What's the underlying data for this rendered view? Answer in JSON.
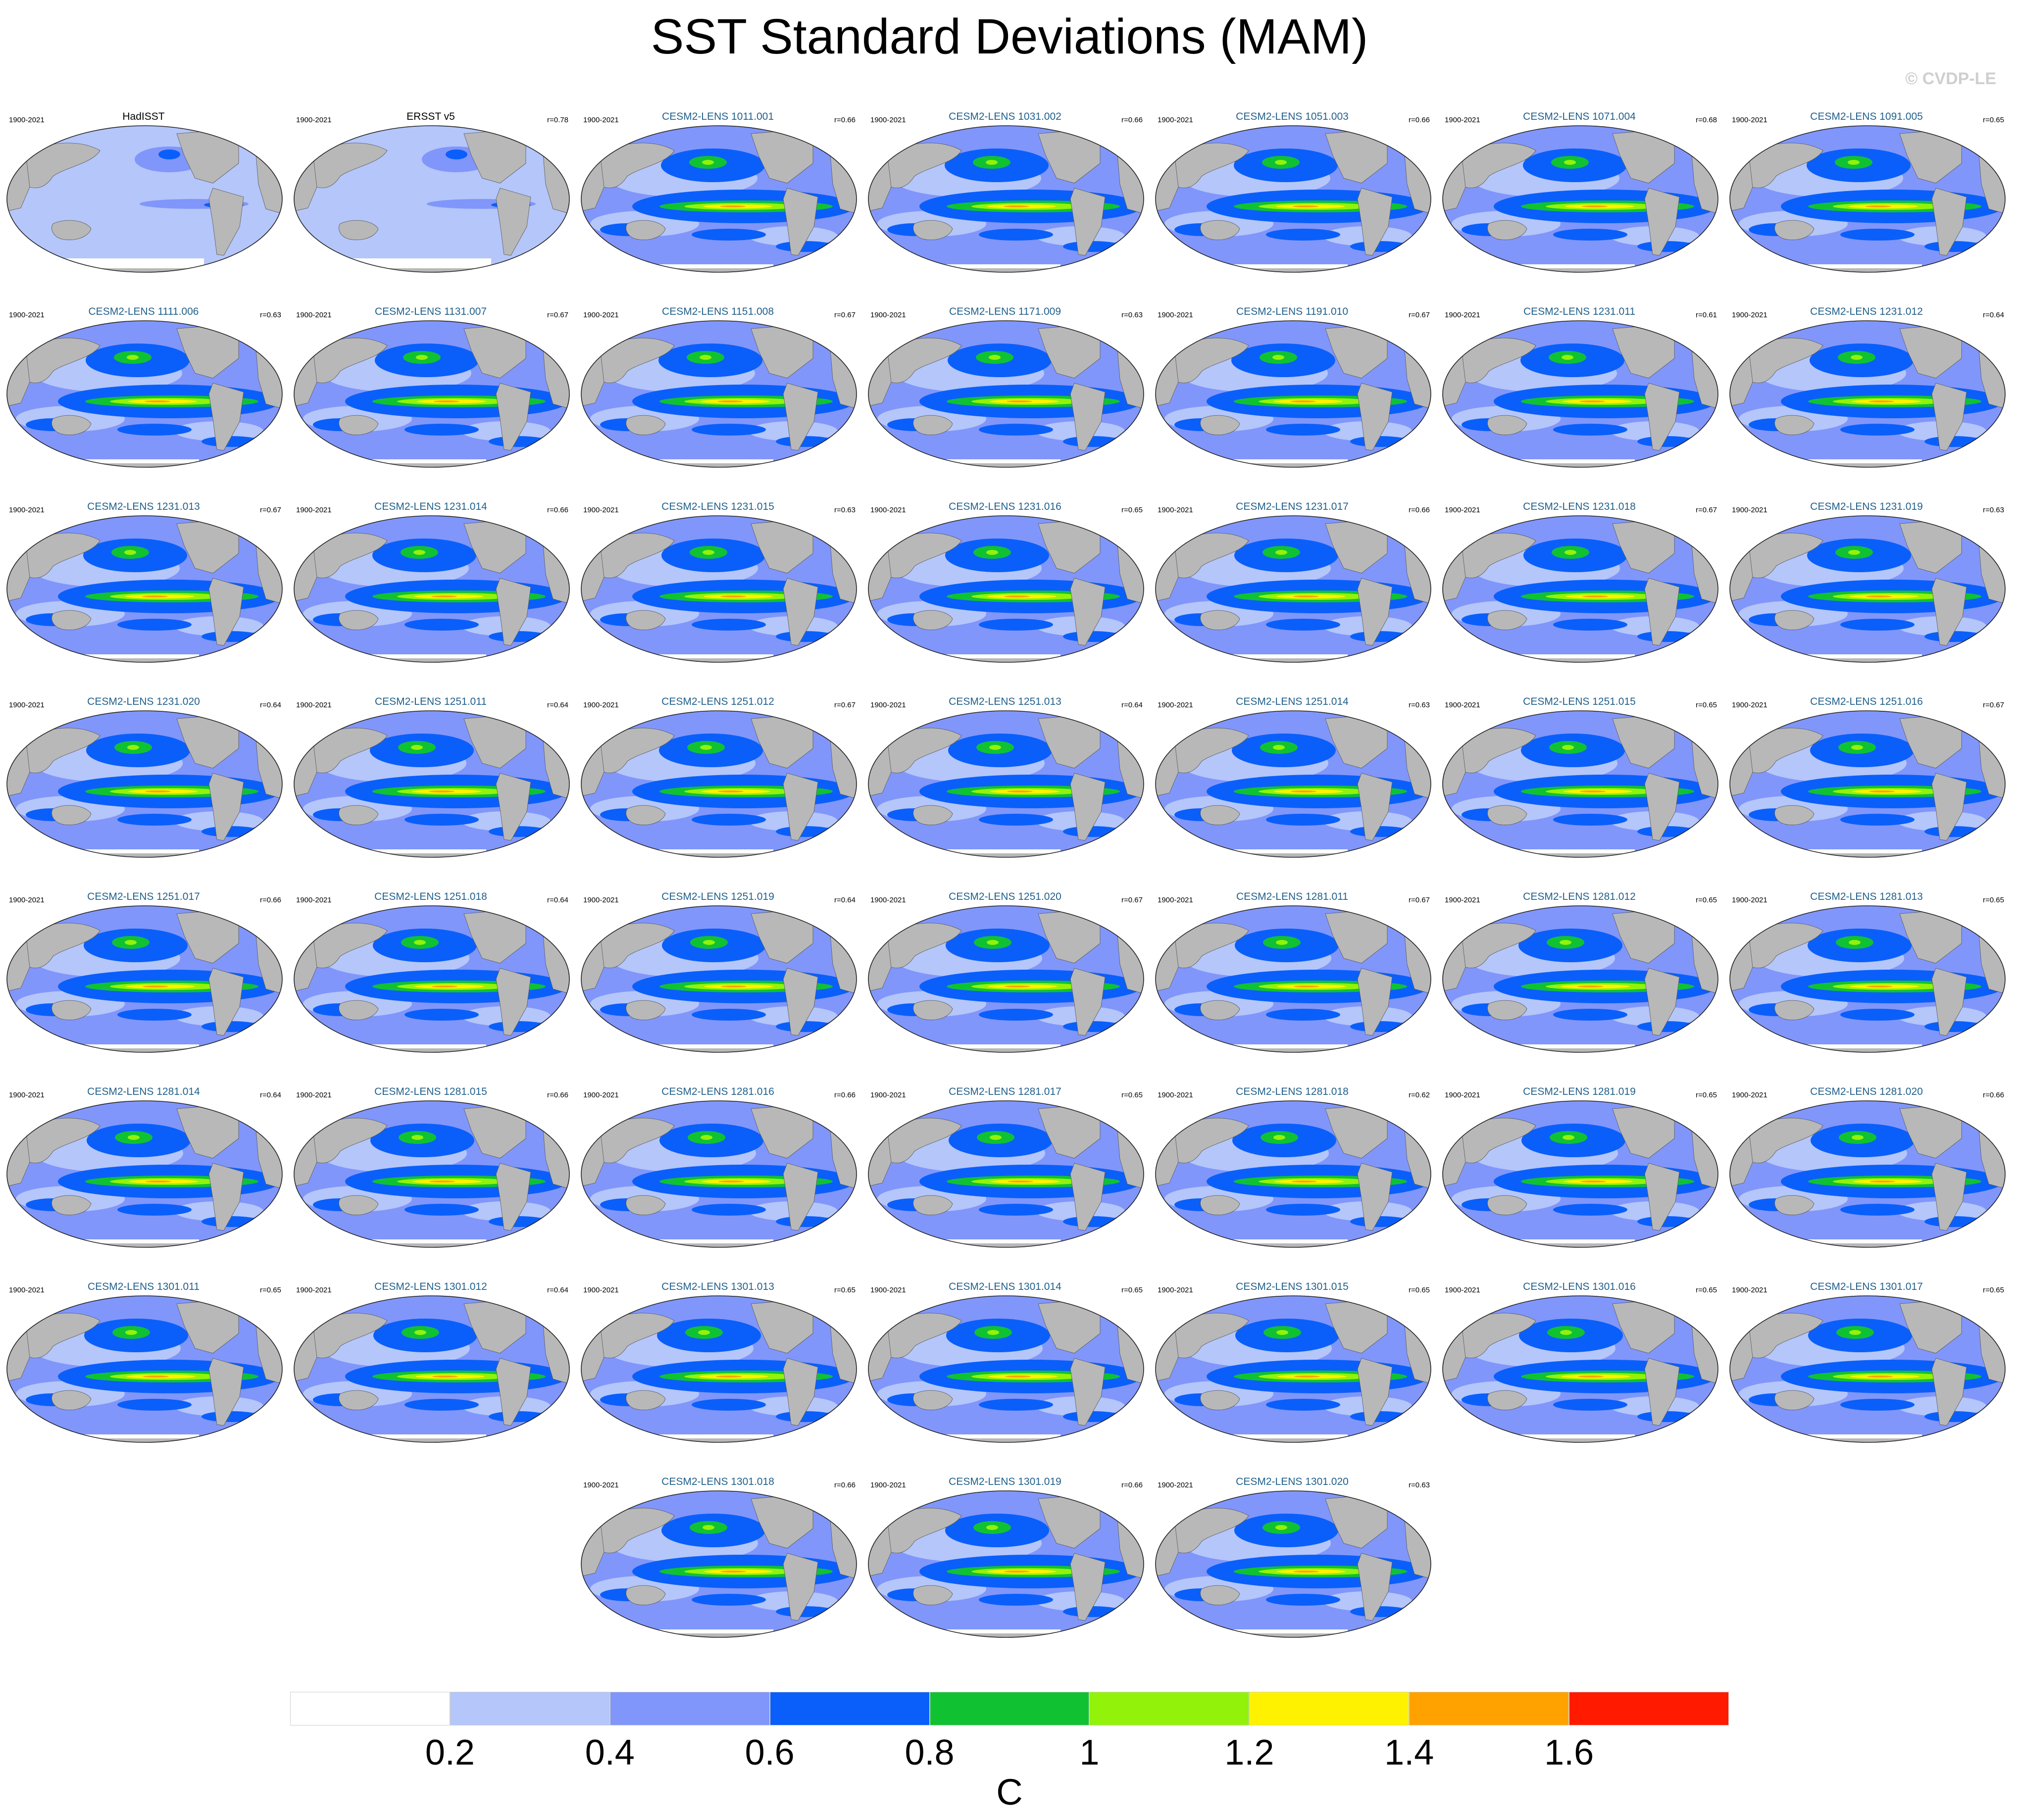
{
  "title": "SST Standard Deviations (MAM)",
  "copyright": "© CVDP-LE",
  "colors": {
    "land": "#b8b8b8",
    "ocean_low": "#b4c6fa",
    "ocean_mid": "#8196fa",
    "ocean_high": "#0a5ffa",
    "green": "#10c232",
    "lime": "#92f20a",
    "yellow": "#fff200",
    "orange": "#ffa200",
    "red": "#ff1a00",
    "ptitle": "#1f5f8b"
  },
  "panels": [
    {
      "title": "HadISST",
      "years": "1900-2021",
      "r": "",
      "obs": true
    },
    {
      "title": "ERSST v5",
      "years": "1900-2021",
      "r": "r=0.78",
      "obs": true
    },
    {
      "title": "CESM2-LENS 1011.001",
      "years": "1900-2021",
      "r": "r=0.66"
    },
    {
      "title": "CESM2-LENS 1031.002",
      "years": "1900-2021",
      "r": "r=0.66"
    },
    {
      "title": "CESM2-LENS 1051.003",
      "years": "1900-2021",
      "r": "r=0.66"
    },
    {
      "title": "CESM2-LENS 1071.004",
      "years": "1900-2021",
      "r": "r=0.68"
    },
    {
      "title": "CESM2-LENS 1091.005",
      "years": "1900-2021",
      "r": "r=0.65"
    },
    {
      "title": "CESM2-LENS 1111.006",
      "years": "1900-2021",
      "r": "r=0.63"
    },
    {
      "title": "CESM2-LENS 1131.007",
      "years": "1900-2021",
      "r": "r=0.67"
    },
    {
      "title": "CESM2-LENS 1151.008",
      "years": "1900-2021",
      "r": "r=0.67"
    },
    {
      "title": "CESM2-LENS 1171.009",
      "years": "1900-2021",
      "r": "r=0.63"
    },
    {
      "title": "CESM2-LENS 1191.010",
      "years": "1900-2021",
      "r": "r=0.67"
    },
    {
      "title": "CESM2-LENS 1231.011",
      "years": "1900-2021",
      "r": "r=0.61"
    },
    {
      "title": "CESM2-LENS 1231.012",
      "years": "1900-2021",
      "r": "r=0.64"
    },
    {
      "title": "CESM2-LENS 1231.013",
      "years": "1900-2021",
      "r": "r=0.67"
    },
    {
      "title": "CESM2-LENS 1231.014",
      "years": "1900-2021",
      "r": "r=0.66"
    },
    {
      "title": "CESM2-LENS 1231.015",
      "years": "1900-2021",
      "r": "r=0.63"
    },
    {
      "title": "CESM2-LENS 1231.016",
      "years": "1900-2021",
      "r": "r=0.65"
    },
    {
      "title": "CESM2-LENS 1231.017",
      "years": "1900-2021",
      "r": "r=0.66"
    },
    {
      "title": "CESM2-LENS 1231.018",
      "years": "1900-2021",
      "r": "r=0.67"
    },
    {
      "title": "CESM2-LENS 1231.019",
      "years": "1900-2021",
      "r": "r=0.63"
    },
    {
      "title": "CESM2-LENS 1231.020",
      "years": "1900-2021",
      "r": "r=0.64"
    },
    {
      "title": "CESM2-LENS 1251.011",
      "years": "1900-2021",
      "r": "r=0.64"
    },
    {
      "title": "CESM2-LENS 1251.012",
      "years": "1900-2021",
      "r": "r=0.67"
    },
    {
      "title": "CESM2-LENS 1251.013",
      "years": "1900-2021",
      "r": "r=0.64"
    },
    {
      "title": "CESM2-LENS 1251.014",
      "years": "1900-2021",
      "r": "r=0.63"
    },
    {
      "title": "CESM2-LENS 1251.015",
      "years": "1900-2021",
      "r": "r=0.65"
    },
    {
      "title": "CESM2-LENS 1251.016",
      "years": "1900-2021",
      "r": "r=0.67"
    },
    {
      "title": "CESM2-LENS 1251.017",
      "years": "1900-2021",
      "r": "r=0.66"
    },
    {
      "title": "CESM2-LENS 1251.018",
      "years": "1900-2021",
      "r": "r=0.64"
    },
    {
      "title": "CESM2-LENS 1251.019",
      "years": "1900-2021",
      "r": "r=0.64"
    },
    {
      "title": "CESM2-LENS 1251.020",
      "years": "1900-2021",
      "r": "r=0.67"
    },
    {
      "title": "CESM2-LENS 1281.011",
      "years": "1900-2021",
      "r": "r=0.67"
    },
    {
      "title": "CESM2-LENS 1281.012",
      "years": "1900-2021",
      "r": "r=0.65"
    },
    {
      "title": "CESM2-LENS 1281.013",
      "years": "1900-2021",
      "r": "r=0.65"
    },
    {
      "title": "CESM2-LENS 1281.014",
      "years": "1900-2021",
      "r": "r=0.64"
    },
    {
      "title": "CESM2-LENS 1281.015",
      "years": "1900-2021",
      "r": "r=0.66"
    },
    {
      "title": "CESM2-LENS 1281.016",
      "years": "1900-2021",
      "r": "r=0.66"
    },
    {
      "title": "CESM2-LENS 1281.017",
      "years": "1900-2021",
      "r": "r=0.65"
    },
    {
      "title": "CESM2-LENS 1281.018",
      "years": "1900-2021",
      "r": "r=0.62"
    },
    {
      "title": "CESM2-LENS 1281.019",
      "years": "1900-2021",
      "r": "r=0.65"
    },
    {
      "title": "CESM2-LENS 1281.020",
      "years": "1900-2021",
      "r": "r=0.66"
    },
    {
      "title": "CESM2-LENS 1301.011",
      "years": "1900-2021",
      "r": "r=0.65"
    },
    {
      "title": "CESM2-LENS 1301.012",
      "years": "1900-2021",
      "r": "r=0.64"
    },
    {
      "title": "CESM2-LENS 1301.013",
      "years": "1900-2021",
      "r": "r=0.65"
    },
    {
      "title": "CESM2-LENS 1301.014",
      "years": "1900-2021",
      "r": "r=0.65"
    },
    {
      "title": "CESM2-LENS 1301.015",
      "years": "1900-2021",
      "r": "r=0.65"
    },
    {
      "title": "CESM2-LENS 1301.016",
      "years": "1900-2021",
      "r": "r=0.65"
    },
    {
      "title": "CESM2-LENS 1301.017",
      "years": "1900-2021",
      "r": "r=0.65"
    },
    {
      "title": "CESM2-LENS 1301.018",
      "years": "1900-2021",
      "r": "r=0.66"
    },
    {
      "title": "CESM2-LENS 1301.019",
      "years": "1900-2021",
      "r": "r=0.66"
    },
    {
      "title": "CESM2-LENS 1301.020",
      "years": "1900-2021",
      "r": "r=0.63"
    }
  ],
  "colorbar": {
    "colors": [
      "#ffffff",
      "#b4c6fa",
      "#8196fa",
      "#0a5ffa",
      "#10c232",
      "#92f20a",
      "#fff200",
      "#ffa200",
      "#ff1a00"
    ],
    "labels": [
      "0.2",
      "0.4",
      "0.6",
      "0.8",
      "1",
      "1.2",
      "1.4",
      "1.6"
    ],
    "units": "C"
  }
}
